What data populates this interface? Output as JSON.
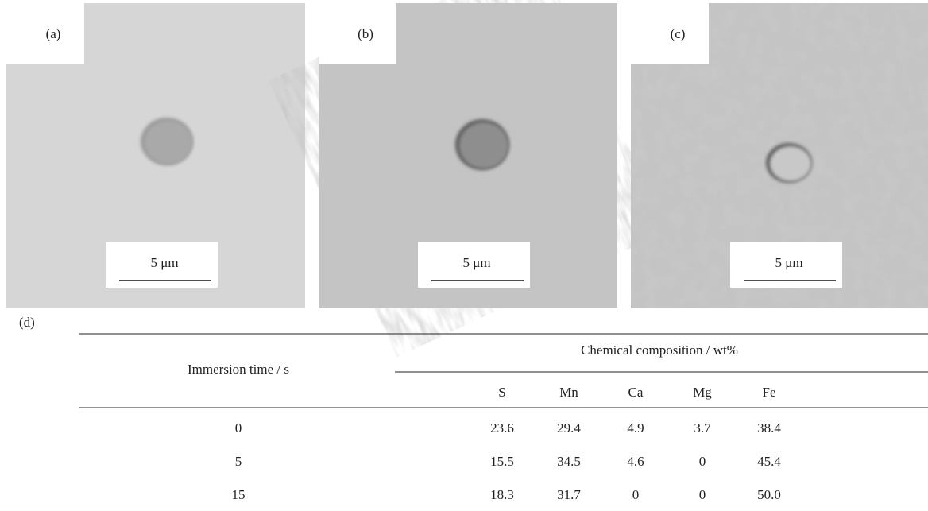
{
  "panels": [
    {
      "label": "(a)",
      "scale": "5 μm"
    },
    {
      "label": "(b)",
      "scale": "5 μm"
    },
    {
      "label": "(c)",
      "scale": "5 μm"
    }
  ],
  "table": {
    "label": "(d)",
    "row_header": "Immersion time / s",
    "group_header": "Chemical composition / wt%",
    "columns": [
      "S",
      "Mn",
      "Ca",
      "Mg",
      "Fe"
    ],
    "rows": [
      [
        "0",
        "23.6",
        "29.4",
        "4.9",
        "3.7",
        "38.4"
      ],
      [
        "5",
        "15.5",
        "34.5",
        "4.6",
        "0",
        "45.4"
      ],
      [
        "15",
        "18.3",
        "31.7",
        "0",
        "0",
        "50.0"
      ]
    ]
  }
}
